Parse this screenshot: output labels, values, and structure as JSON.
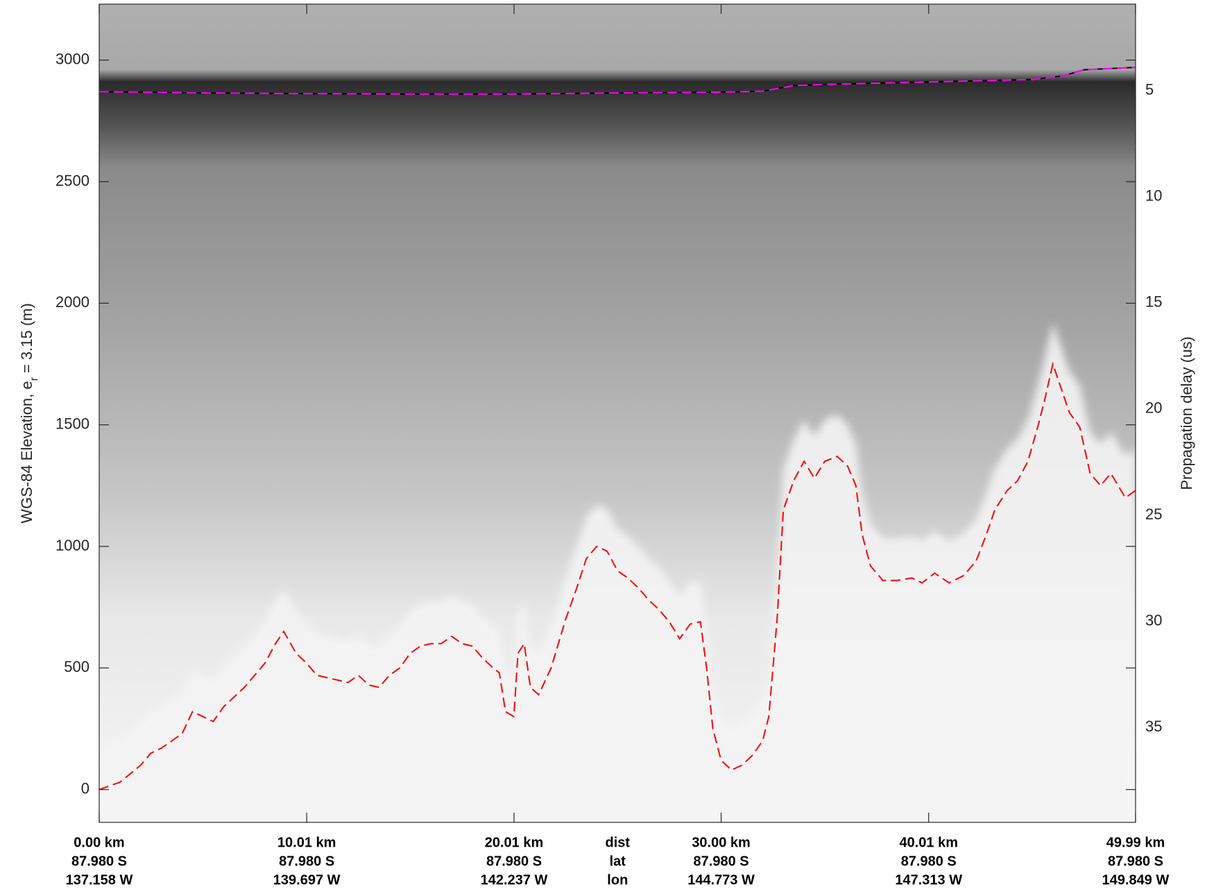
{
  "chart_data": {
    "type": "line",
    "ylabel": "WGS-84 Elevation, e",
    "ylabel_sub": "r",
    "ylabel_end": "= 3.15 (m)",
    "y2label": "Propagation delay (us)",
    "row_labels": [
      "dist",
      "lat",
      "lon"
    ],
    "xlim": [
      0,
      49.99
    ],
    "xticks": [
      {
        "value": 0,
        "label": "0.00 km"
      },
      {
        "value": 10.01,
        "label": "10.01 km"
      },
      {
        "value": 20.01,
        "label": "20.01 km"
      },
      {
        "value": 30.0,
        "label": "30.00 km"
      },
      {
        "value": 40.01,
        "label": "40.01 km"
      },
      {
        "value": 49.99,
        "label": "49.99 km"
      }
    ],
    "xtick_lat": [
      "87.980 S",
      "87.980 S",
      "87.980 S",
      "87.980 S",
      "87.980 S",
      "87.980 S"
    ],
    "xtick_lon": [
      "137.158 W",
      "139.697 W",
      "142.237 W",
      "144.773 W",
      "147.313 W",
      "149.849 W"
    ],
    "ylim": [
      -135,
      3230
    ],
    "yticks": [
      0,
      500,
      1000,
      1500,
      2000,
      2500,
      3000
    ],
    "y2lim": [
      0.93,
      39.47
    ],
    "y2_reversed": true,
    "y2ticks": [
      5,
      10,
      15,
      20,
      25,
      30,
      35
    ],
    "series": [
      {
        "color": "#ff0000",
        "dashed": true,
        "x": [
          0,
          1,
          2,
          2.5,
          3,
          4,
          4.5,
          5,
          5.5,
          6,
          7,
          7.5,
          8,
          8.5,
          8.9,
          9.5,
          10,
          10.5,
          11,
          12,
          12.5,
          13,
          13.5,
          14,
          14.5,
          15,
          15.5,
          16,
          16.5,
          17,
          17.5,
          18,
          18.5,
          19,
          19.3,
          19.6,
          20,
          20.2,
          20.5,
          20.8,
          21.2,
          21.8,
          22.5,
          23,
          23.5,
          24,
          24.5,
          25,
          25.5,
          26,
          26.5,
          27,
          27.5,
          28,
          28.5,
          29,
          29.3,
          29.6,
          30,
          30.5,
          31,
          31.5,
          32,
          32.3,
          32.7,
          33,
          33.5,
          34,
          34.5,
          35,
          35.6,
          36.1,
          36.5,
          36.8,
          37.2,
          37.8,
          38.5,
          39.2,
          39.7,
          40.3,
          41,
          41.7,
          42.3,
          42.8,
          43.2,
          43.8,
          44.3,
          44.8,
          45.3,
          45.6,
          46,
          46.4,
          46.8,
          47.3,
          47.8,
          48.3,
          48.8,
          49.5,
          49.99
        ],
        "values": [
          0,
          30,
          100,
          150,
          170,
          230,
          320,
          300,
          280,
          340,
          420,
          470,
          520,
          600,
          650,
          560,
          520,
          470,
          460,
          440,
          470,
          430,
          420,
          470,
          500,
          560,
          590,
          600,
          600,
          630,
          600,
          590,
          540,
          500,
          480,
          320,
          300,
          560,
          600,
          420,
          390,
          500,
          700,
          820,
          950,
          1000,
          980,
          900,
          870,
          830,
          780,
          740,
          690,
          620,
          680,
          690,
          500,
          250,
          120,
          80,
          100,
          140,
          200,
          300,
          700,
          1150,
          1270,
          1350,
          1280,
          1350,
          1370,
          1330,
          1250,
          1050,
          920,
          860,
          860,
          870,
          850,
          890,
          850,
          880,
          940,
          1050,
          1150,
          1230,
          1270,
          1350,
          1500,
          1600,
          1750,
          1650,
          1550,
          1490,
          1300,
          1250,
          1300,
          1200,
          1230
        ]
      },
      {
        "color": "#ff00ff",
        "dashed": true,
        "x": [
          0,
          5,
          10,
          15,
          20,
          25,
          30,
          32,
          33.5,
          35,
          40,
          45,
          46.5,
          47.5,
          49.99
        ],
        "values": [
          2870,
          2865,
          2862,
          2860,
          2860,
          2865,
          2868,
          2872,
          2895,
          2900,
          2910,
          2920,
          2935,
          2960,
          2970
        ]
      }
    ]
  }
}
